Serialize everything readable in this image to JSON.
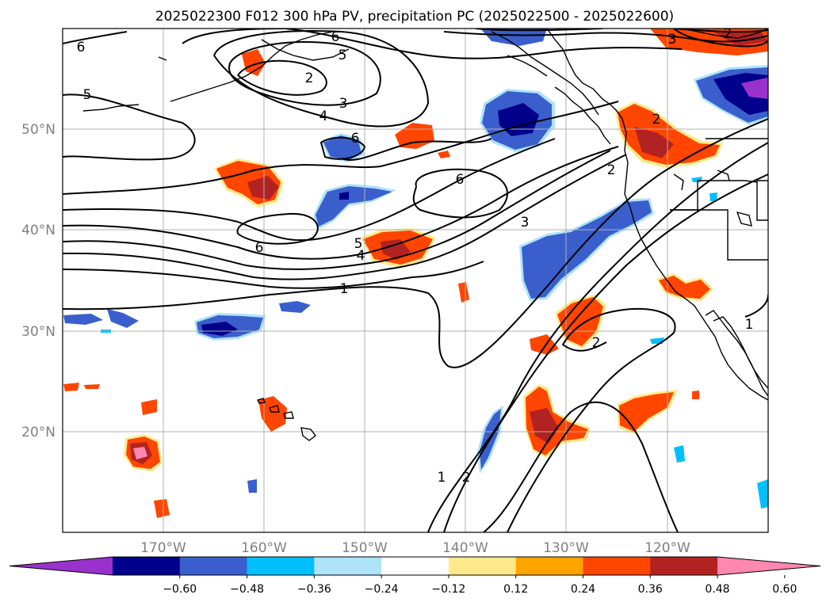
{
  "title": "2025022300 F012 300 hPa PV, precipitation PC (2025022500 - 2025022600)",
  "lon_labels": [
    "170°W",
    "160°W",
    "150°W",
    "140°W",
    "130°W",
    "120°W"
  ],
  "lat_labels": [
    "50°N",
    "40°N",
    "30°N",
    "20°N"
  ],
  "colorbar": {
    "ticks": [
      "−0.60",
      "−0.48",
      "−0.36",
      "−0.24",
      "−0.12",
      "0.12",
      "0.24",
      "0.36",
      "0.48",
      "0.60"
    ],
    "colors": [
      "#9932cc",
      "#00008b",
      "#3a5fcd",
      "#00bfff",
      "#aee3fa",
      "#ffffff",
      "#ffe98a",
      "#ffa500",
      "#ff4500",
      "#b22222",
      "#ff88b0"
    ]
  },
  "contour_labels": [
    "6",
    "5",
    "2",
    "4",
    "3",
    "6",
    "6",
    "5",
    "4",
    "1",
    "6",
    "3",
    "2",
    "2",
    "1",
    "2",
    "3",
    "2",
    "1",
    "2",
    "5",
    "6"
  ],
  "colors": {
    "coast": "#000000",
    "contour": "#000000",
    "grid": "#b0b0b0"
  }
}
